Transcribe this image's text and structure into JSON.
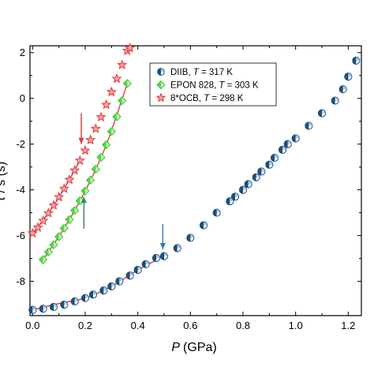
{
  "chart_data": {
    "type": "scatter",
    "xlabel": {
      "var": "P",
      "unit": "(GPa)"
    },
    "ylabel_fragment": "τ / s (s)",
    "xlim": [
      -0.01,
      1.25
    ],
    "ylim": [
      -9.5,
      2.3
    ],
    "x_ticks": [
      0.0,
      0.2,
      0.4,
      0.6,
      0.8,
      1.0,
      1.2
    ],
    "x_tick_labels": [
      "0.0",
      "0.2",
      "0.4",
      "0.6",
      "0.8",
      "1.0",
      "1.2"
    ],
    "y_ticks": [
      -8,
      -6,
      -4,
      -2,
      0,
      2
    ],
    "y_tick_labels": [
      "-8",
      "-6",
      "-4",
      "-2",
      "0",
      "2"
    ],
    "legend": {
      "placement": "top-center",
      "entries": [
        {
          "prefix": "DIIB, ",
          "var": "T",
          "suffix": " = 317 K",
          "marker": "half-circle",
          "color": "#1f4e79"
        },
        {
          "prefix": "EPON 828, ",
          "var": "T",
          "suffix": " = 303 K",
          "marker": "diamond",
          "color": "#33cc33"
        },
        {
          "prefix": "8*OCB, ",
          "var": "T",
          "suffix": " = 298 K",
          "marker": "star",
          "color": "#e03c3c"
        }
      ]
    },
    "series": [
      {
        "name": "DIIB, T = 317 K",
        "marker": "half-circle",
        "color": "#1f4e79",
        "x": [
          0.0,
          0.04,
          0.08,
          0.12,
          0.16,
          0.2,
          0.23,
          0.27,
          0.3,
          0.33,
          0.37,
          0.4,
          0.43,
          0.47,
          0.5,
          0.55,
          0.6,
          0.65,
          0.7,
          0.75,
          0.77,
          0.8,
          0.82,
          0.85,
          0.87,
          0.9,
          0.92,
          0.95,
          0.97,
          1.0,
          1.05,
          1.1,
          1.15,
          1.18,
          1.2,
          1.23
        ],
        "y": [
          -9.25,
          -9.2,
          -9.12,
          -9.02,
          -8.88,
          -8.73,
          -8.58,
          -8.4,
          -8.22,
          -8.0,
          -7.75,
          -7.5,
          -7.25,
          -6.98,
          -6.9,
          -6.55,
          -6.1,
          -5.55,
          -5.0,
          -4.5,
          -4.3,
          -4.0,
          -3.75,
          -3.45,
          -3.2,
          -2.9,
          -2.6,
          -2.25,
          -2.0,
          -1.75,
          -1.2,
          -0.65,
          -0.1,
          0.4,
          0.95,
          1.65
        ]
      },
      {
        "name": "EPON 828, T = 303 K",
        "marker": "diamond",
        "color": "#33cc33",
        "x": [
          0.04,
          0.06,
          0.08,
          0.1,
          0.12,
          0.14,
          0.16,
          0.18,
          0.2,
          0.22,
          0.24,
          0.26,
          0.28,
          0.3,
          0.32,
          0.34,
          0.36
        ],
        "y": [
          -7.05,
          -6.72,
          -6.4,
          -6.05,
          -5.68,
          -5.3,
          -4.9,
          -4.48,
          -4.05,
          -3.58,
          -3.1,
          -2.58,
          -2.03,
          -1.45,
          -0.8,
          -0.1,
          0.65
        ]
      },
      {
        "name": "8*OCB, T = 298 K",
        "marker": "star",
        "color": "#e03c3c",
        "x": [
          0.0,
          0.02,
          0.04,
          0.06,
          0.08,
          0.1,
          0.12,
          0.14,
          0.16,
          0.18,
          0.2,
          0.22,
          0.24,
          0.26,
          0.28,
          0.3,
          0.32,
          0.34,
          0.36,
          0.37
        ],
        "y": [
          -5.9,
          -5.65,
          -5.35,
          -5.02,
          -4.68,
          -4.32,
          -3.95,
          -3.56,
          -3.15,
          -2.72,
          -2.28,
          -1.82,
          -1.33,
          -0.82,
          -0.28,
          0.28,
          0.86,
          1.46,
          2.08,
          2.2
        ]
      }
    ],
    "fit_curves": [
      {
        "color": "#e03c3c",
        "x": [
          0.0,
          0.1,
          0.2,
          0.3,
          0.4,
          0.5
        ],
        "y": [
          -9.25,
          -8.97,
          -8.73,
          -8.22,
          -7.5,
          -6.9
        ]
      },
      {
        "color": "#e03c3c",
        "x": [
          0.04,
          0.12,
          0.2,
          0.28,
          0.36
        ],
        "y": [
          -7.05,
          -5.68,
          -4.05,
          -2.03,
          0.65
        ]
      },
      {
        "color": "#a03ca0",
        "x": [
          0.0,
          0.06,
          0.12,
          0.18
        ],
        "y": [
          -5.9,
          -5.02,
          -3.95,
          -2.72
        ]
      }
    ],
    "arrows": [
      {
        "color": "#e03c3c",
        "direction": "down",
        "x": 0.185,
        "y_from": -0.65,
        "y_to": -2.0
      },
      {
        "color": "#2e8b57",
        "direction": "up",
        "x": 0.195,
        "y_from": -5.7,
        "y_to": -4.3
      },
      {
        "color": "#2b7bb9",
        "direction": "down",
        "x": 0.495,
        "y_from": -5.5,
        "y_to": -6.6
      }
    ]
  }
}
